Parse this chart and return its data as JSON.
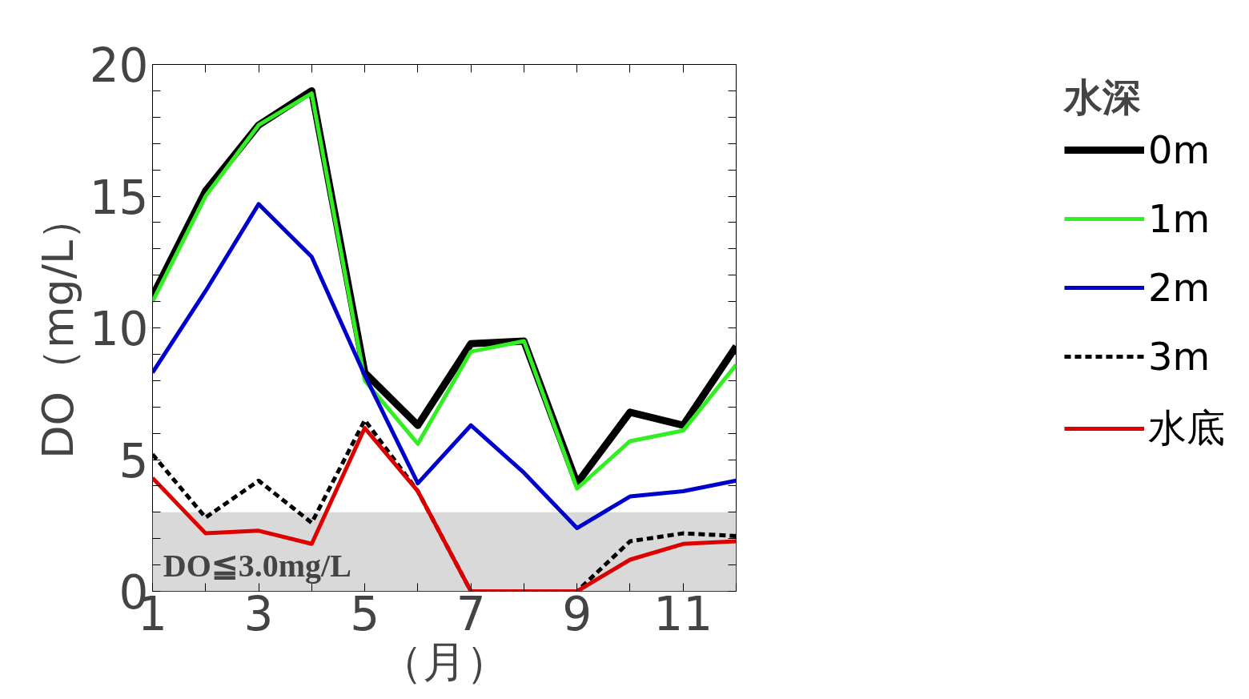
{
  "chart_data": {
    "type": "line",
    "xlabel": "（月）",
    "ylabel": "DO（mg/L）",
    "legend_title": "水深",
    "legend": "right",
    "grid": false,
    "line_style": "solid",
    "x": [
      1,
      2,
      3,
      4,
      5,
      6,
      7,
      8,
      9,
      10,
      11,
      12
    ],
    "xlim": [
      1,
      12
    ],
    "xticks": [
      1,
      {
        "value": 2,
        "label": null
      },
      3,
      {
        "value": 4,
        "label": null
      },
      5,
      {
        "value": 6,
        "label": null
      },
      7,
      {
        "value": 8,
        "label": null
      },
      9,
      {
        "value": 10,
        "label": null
      },
      11,
      {
        "value": 12,
        "label": null
      }
    ],
    "ylim": [
      0,
      20
    ],
    "yticks": [
      0,
      {
        "value": 1,
        "label": null
      },
      {
        "value": 2,
        "label": null
      },
      {
        "value": 3,
        "label": null
      },
      {
        "value": 4,
        "label": null
      },
      5,
      {
        "value": 6,
        "label": null
      },
      {
        "value": 7,
        "label": null
      },
      {
        "value": 8,
        "label": null
      },
      {
        "value": 9,
        "label": null
      },
      10,
      {
        "value": 11,
        "label": null
      },
      {
        "value": 12,
        "label": null
      },
      {
        "value": 13,
        "label": null
      },
      {
        "value": 14,
        "label": null
      },
      15,
      {
        "value": 16,
        "label": null
      },
      {
        "value": 17,
        "label": null
      },
      {
        "value": 18,
        "label": null
      },
      {
        "value": 19,
        "label": null
      },
      20
    ],
    "bands": [
      {
        "axis": "y",
        "from": 0,
        "to": 3.0,
        "label": "DO≦3.0mg/L",
        "color": "#d9d9d9"
      }
    ],
    "series": [
      {
        "name": "0m",
        "color": "#000000",
        "values": [
          11.2,
          15.2,
          17.7,
          19.0,
          8.3,
          6.3,
          9.4,
          9.5,
          4.1,
          6.8,
          6.3,
          9.3
        ]
      },
      {
        "name": "1m",
        "color": "#33ee22",
        "values": [
          11.0,
          15.0,
          17.7,
          18.9,
          8.0,
          5.6,
          9.1,
          9.5,
          3.9,
          5.7,
          6.1,
          8.6
        ]
      },
      {
        "name": "2m",
        "color": "#0000cc",
        "values": [
          8.3,
          11.4,
          14.7,
          12.7,
          8.2,
          4.1,
          6.3,
          4.5,
          2.4,
          3.6,
          3.8,
          4.2
        ]
      },
      {
        "name": "3m",
        "color": "#000000",
        "line_style": "dashed",
        "values": [
          5.2,
          2.8,
          4.2,
          2.6,
          6.5,
          3.8,
          0,
          0,
          0,
          1.9,
          2.2,
          2.1
        ]
      },
      {
        "name": "水底",
        "color": "#dd0000",
        "values": [
          4.3,
          2.2,
          2.3,
          1.8,
          6.2,
          3.8,
          0,
          0,
          0,
          1.2,
          1.8,
          1.9
        ]
      }
    ]
  }
}
